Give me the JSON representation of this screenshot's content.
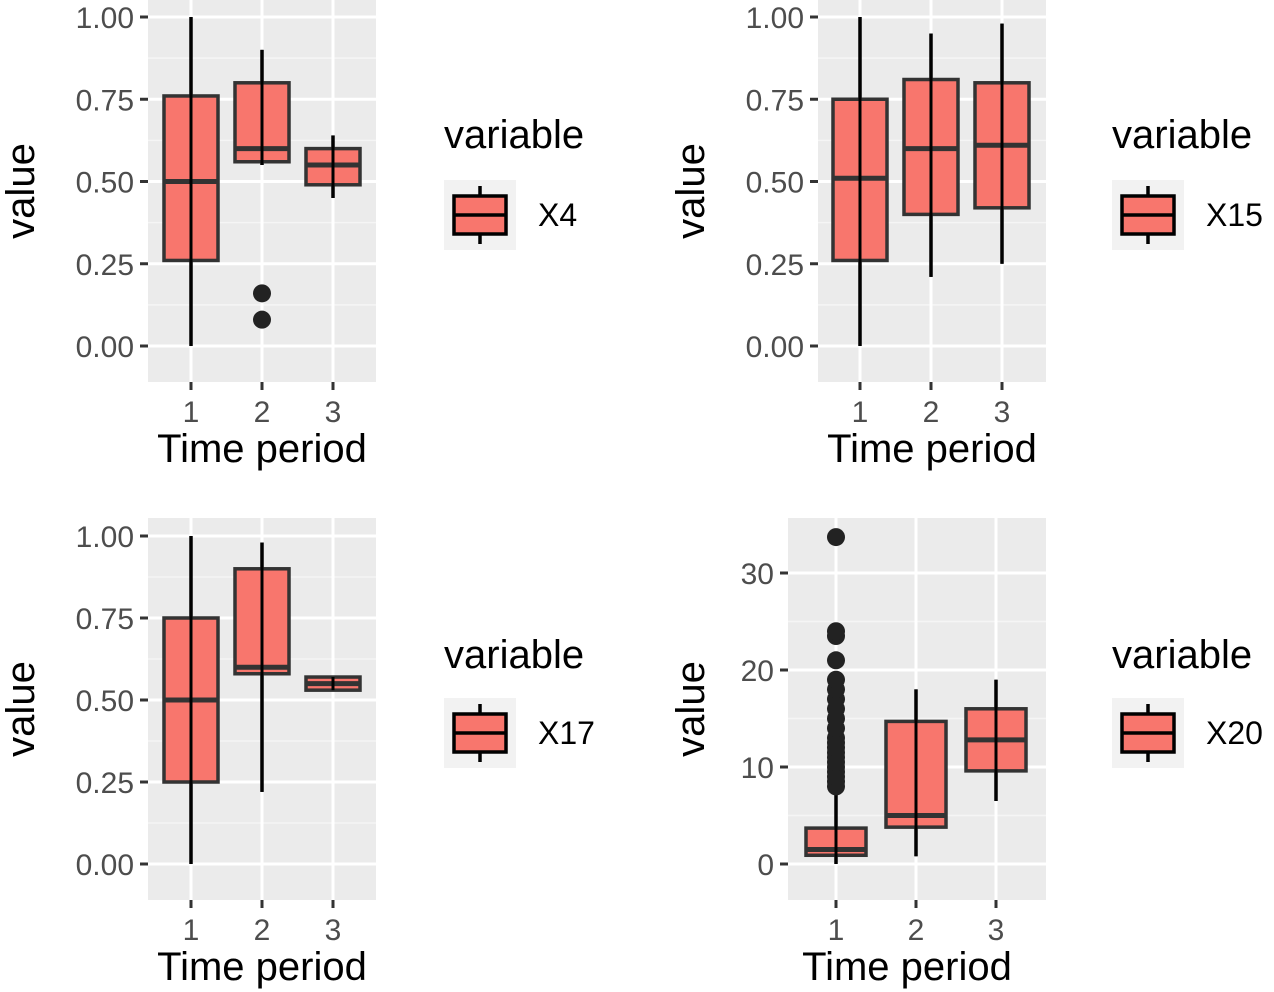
{
  "chart_data": [
    {
      "type": "boxplot",
      "categories": [
        "1",
        "2",
        "3"
      ],
      "xlabel": "Time period",
      "ylabel": "value",
      "ylim": [
        0,
        1
      ],
      "yticks": [
        "0.00",
        "0.25",
        "0.50",
        "0.75",
        "1.00"
      ],
      "ytick_values": [
        0,
        0.25,
        0.5,
        0.75,
        1
      ],
      "grid": true,
      "legend": {
        "title": "variable",
        "label": "X4",
        "position": "right"
      },
      "fill_color": "#F8766D",
      "boxes": [
        {
          "x": "1",
          "min": 0.0,
          "q1": 0.26,
          "median": 0.5,
          "q3": 0.76,
          "max": 1.0,
          "outliers": []
        },
        {
          "x": "2",
          "min": 0.55,
          "q1": 0.56,
          "median": 0.6,
          "q3": 0.8,
          "max": 0.9,
          "outliers": [
            0.08,
            0.16
          ]
        },
        {
          "x": "3",
          "min": 0.45,
          "q1": 0.49,
          "median": 0.55,
          "q3": 0.6,
          "max": 0.64,
          "outliers": []
        }
      ]
    },
    {
      "type": "boxplot",
      "categories": [
        "1",
        "2",
        "3"
      ],
      "xlabel": "Time period",
      "ylabel": "value",
      "ylim": [
        0,
        1
      ],
      "yticks": [
        "0.00",
        "0.25",
        "0.50",
        "0.75",
        "1.00"
      ],
      "ytick_values": [
        0,
        0.25,
        0.5,
        0.75,
        1
      ],
      "grid": true,
      "legend": {
        "title": "variable",
        "label": "X15",
        "position": "right"
      },
      "fill_color": "#F8766D",
      "boxes": [
        {
          "x": "1",
          "min": 0.0,
          "q1": 0.26,
          "median": 0.51,
          "q3": 0.75,
          "max": 1.0,
          "outliers": []
        },
        {
          "x": "2",
          "min": 0.21,
          "q1": 0.4,
          "median": 0.6,
          "q3": 0.81,
          "max": 0.95,
          "outliers": []
        },
        {
          "x": "3",
          "min": 0.25,
          "q1": 0.42,
          "median": 0.61,
          "q3": 0.8,
          "max": 0.98,
          "outliers": []
        }
      ]
    },
    {
      "type": "boxplot",
      "categories": [
        "1",
        "2",
        "3"
      ],
      "xlabel": "Time period",
      "ylabel": "value",
      "ylim": [
        0,
        1
      ],
      "yticks": [
        "0.00",
        "0.25",
        "0.50",
        "0.75",
        "1.00"
      ],
      "ytick_values": [
        0,
        0.25,
        0.5,
        0.75,
        1
      ],
      "grid": true,
      "legend": {
        "title": "variable",
        "label": "X17",
        "position": "right"
      },
      "fill_color": "#F8766D",
      "boxes": [
        {
          "x": "1",
          "min": 0.0,
          "q1": 0.25,
          "median": 0.5,
          "q3": 0.75,
          "max": 1.0,
          "outliers": []
        },
        {
          "x": "2",
          "min": 0.22,
          "q1": 0.58,
          "median": 0.6,
          "q3": 0.9,
          "max": 0.98,
          "outliers": []
        },
        {
          "x": "3",
          "min": 0.53,
          "q1": 0.53,
          "median": 0.55,
          "q3": 0.57,
          "max": 0.57,
          "outliers": []
        }
      ]
    },
    {
      "type": "boxplot",
      "categories": [
        "1",
        "2",
        "3"
      ],
      "xlabel": "Time period",
      "ylabel": "value",
      "ylim": [
        -1.5,
        35
      ],
      "yticks": [
        "0",
        "10",
        "20",
        "30"
      ],
      "ytick_values": [
        0,
        10,
        20,
        30
      ],
      "grid": true,
      "legend": {
        "title": "variable",
        "label": "X20",
        "position": "right"
      },
      "fill_color": "#F8766D",
      "boxes": [
        {
          "x": "1",
          "min": 0.0,
          "q1": 0.9,
          "median": 1.5,
          "q3": 3.7,
          "max": 7.5,
          "outliers": [
            8,
            8.5,
            9,
            9.5,
            10,
            10.5,
            11,
            11.5,
            12,
            12.5,
            13,
            14,
            15,
            16,
            17,
            18,
            19,
            21,
            23.5,
            24,
            33.7
          ]
        },
        {
          "x": "2",
          "min": 0.8,
          "q1": 3.8,
          "median": 5.0,
          "q3": 14.7,
          "max": 18.0,
          "outliers": []
        },
        {
          "x": "3",
          "min": 6.5,
          "q1": 9.6,
          "median": 12.8,
          "q3": 16.0,
          "max": 19.0,
          "outliers": []
        }
      ]
    }
  ]
}
